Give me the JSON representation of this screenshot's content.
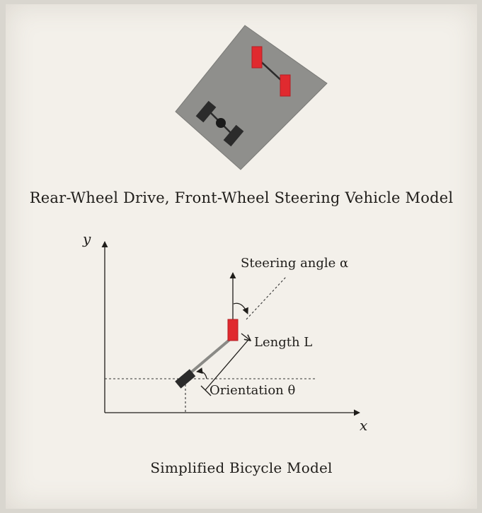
{
  "vehicle_model": {
    "caption": "Rear-Wheel Drive, Front-Wheel Steering Vehicle Model",
    "body_color": "#8f8f8c",
    "front_wheel_color": "#e02a2f",
    "rear_wheel_color": "#2b2b2b"
  },
  "bicycle_model": {
    "caption": "Simplified Bicycle Model",
    "x_axis_label": "x",
    "y_axis_label": "y",
    "steering_label": "Steering angle α",
    "length_label": "Length L",
    "orientation_label": "Orientation θ",
    "front_wheel_color": "#e02a2f",
    "rear_wheel_color": "#2b2b2b"
  }
}
